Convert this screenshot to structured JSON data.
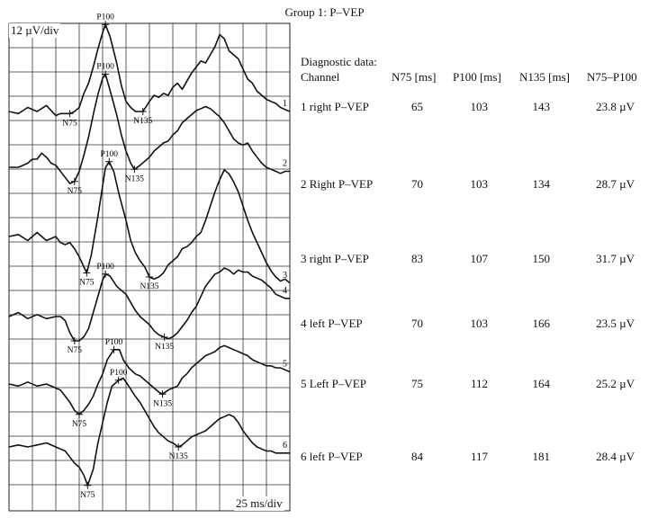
{
  "title": "Group 1: P–VEP",
  "y_scale": "12 µV/div",
  "x_scale": "25 ms/div",
  "table": {
    "heading": "Diagnostic data:",
    "columns": [
      "Channel",
      "N75 [ms]",
      "P100 [ms]",
      "N135 [ms]",
      "N75–P100"
    ],
    "rows": [
      {
        "channel": "1 right P–VEP",
        "n75": "65",
        "p100": "103",
        "n135": "143",
        "amp": "23.8 µV"
      },
      {
        "channel": "2 Right P–VEP",
        "n75": "70",
        "p100": "103",
        "n135": "134",
        "amp": "28.7 µV"
      },
      {
        "channel": "3 right P–VEP",
        "n75": "83",
        "p100": "107",
        "n135": "150",
        "amp": "31.7 µV"
      },
      {
        "channel": "4 left P–VEP",
        "n75": "70",
        "p100": "103",
        "n135": "166",
        "amp": "23.5 µV"
      },
      {
        "channel": "5 Left P–VEP",
        "n75": "75",
        "p100": "112",
        "n135": "164",
        "amp": "25.2 µV"
      },
      {
        "channel": "6 left P–VEP",
        "n75": "84",
        "p100": "117",
        "n135": "181",
        "amp": "28.4 µV"
      }
    ]
  },
  "chart_data": {
    "type": "line",
    "title": "Group 1: P–VEP",
    "x_unit": "ms",
    "y_unit": "µV",
    "x_per_div": 25,
    "y_per_div": 12,
    "xlim": [
      0,
      300
    ],
    "grid": true,
    "peak_labels": [
      "N75",
      "P100",
      "N135"
    ],
    "series": [
      {
        "name": "1",
        "x": [
          0,
          10,
          20,
          30,
          40,
          50,
          55,
          60,
          65,
          70,
          75,
          80,
          85,
          90,
          95,
          100,
          103,
          108,
          115,
          120,
          125,
          130,
          135,
          140,
          143,
          150,
          155,
          160,
          165,
          170,
          175,
          180,
          185,
          190,
          195,
          200,
          205,
          210,
          215,
          220,
          225,
          230,
          235,
          240,
          245,
          250,
          255,
          260,
          265,
          270,
          275,
          280,
          285,
          290,
          295,
          300
        ],
        "y": [
          0,
          -1,
          2,
          0,
          3,
          -2,
          -1,
          -1,
          -1,
          0,
          2,
          9,
          14,
          22,
          31,
          39,
          43,
          37,
          24,
          13,
          5,
          2,
          0,
          0,
          0,
          5,
          8,
          7,
          9,
          8,
          12,
          14,
          11,
          15,
          19,
          22,
          25,
          24,
          28,
          32,
          38,
          36,
          30,
          28,
          26,
          21,
          16,
          14,
          10,
          8,
          6,
          5,
          4,
          2,
          1,
          0
        ]
      },
      {
        "name": "2",
        "x": [
          0,
          10,
          20,
          25,
          30,
          35,
          40,
          45,
          50,
          55,
          60,
          65,
          70,
          75,
          80,
          85,
          90,
          95,
          100,
          103,
          108,
          115,
          120,
          125,
          130,
          134,
          140,
          145,
          150,
          155,
          160,
          165,
          170,
          175,
          180,
          185,
          190,
          195,
          200,
          205,
          210,
          215,
          220,
          225,
          230,
          235,
          240,
          245,
          250,
          255,
          260,
          265,
          270,
          275,
          280,
          285,
          290,
          295,
          300
        ],
        "y": [
          0,
          0,
          2,
          4,
          4,
          7,
          5,
          2,
          1,
          -2,
          -5,
          -8,
          -7,
          -2,
          6,
          15,
          26,
          36,
          44,
          46,
          38,
          26,
          16,
          8,
          2,
          -1,
          1,
          3,
          5,
          8,
          10,
          12,
          13,
          16,
          18,
          22,
          24,
          26,
          28,
          29,
          30,
          29,
          27,
          25,
          22,
          18,
          14,
          12,
          11,
          12,
          8,
          5,
          2,
          0,
          -1,
          -2,
          -3,
          -2,
          -2
        ]
      },
      {
        "name": "3",
        "x": [
          0,
          10,
          20,
          30,
          40,
          50,
          55,
          60,
          65,
          70,
          75,
          80,
          83,
          88,
          95,
          100,
          103,
          107,
          112,
          118,
          125,
          130,
          135,
          140,
          145,
          150,
          155,
          160,
          165,
          170,
          175,
          180,
          185,
          190,
          195,
          200,
          205,
          210,
          215,
          220,
          225,
          230,
          235,
          240,
          245,
          250,
          255,
          260,
          265,
          270,
          275,
          280,
          285,
          290,
          295,
          300
        ],
        "y": [
          0,
          1,
          -2,
          2,
          -2,
          0,
          -3,
          -4,
          -3,
          -6,
          -10,
          -15,
          -18,
          -9,
          10,
          25,
          34,
          37,
          32,
          20,
          8,
          -2,
          -8,
          -12,
          -15,
          -20,
          -21,
          -20,
          -18,
          -14,
          -12,
          -10,
          -6,
          -5,
          -3,
          0,
          2,
          8,
          15,
          22,
          28,
          33,
          31,
          27,
          22,
          15,
          8,
          2,
          -3,
          -8,
          -13,
          -17,
          -20,
          -22,
          -21,
          -23
        ]
      },
      {
        "name": "4",
        "x": [
          0,
          10,
          20,
          30,
          40,
          50,
          55,
          60,
          65,
          70,
          75,
          80,
          85,
          90,
          95,
          100,
          103,
          108,
          115,
          120,
          125,
          130,
          135,
          140,
          145,
          150,
          155,
          160,
          165,
          170,
          175,
          180,
          185,
          190,
          195,
          200,
          205,
          210,
          215,
          220,
          225,
          230,
          235,
          240,
          245,
          250,
          255,
          260,
          265,
          270,
          275,
          280,
          285,
          290,
          295,
          300
        ],
        "y": [
          0,
          2,
          -1,
          1,
          -1,
          0,
          0,
          -2,
          -8,
          -12,
          -12,
          -10,
          -6,
          2,
          10,
          18,
          21,
          20,
          15,
          13,
          11,
          7,
          3,
          0,
          -2,
          -4,
          -7,
          -9,
          -10,
          -11,
          -10,
          -8,
          -5,
          -2,
          2,
          5,
          10,
          15,
          18,
          21,
          22,
          24,
          23,
          21,
          23,
          22,
          22,
          20,
          19,
          18,
          16,
          14,
          11,
          10,
          9,
          9
        ]
      },
      {
        "name": "5",
        "x": [
          0,
          10,
          20,
          30,
          40,
          50,
          55,
          60,
          65,
          70,
          75,
          80,
          85,
          90,
          95,
          100,
          105,
          112,
          118,
          122,
          128,
          135,
          140,
          145,
          150,
          155,
          160,
          164,
          170,
          175,
          180,
          185,
          190,
          195,
          200,
          205,
          210,
          215,
          220,
          225,
          230,
          235,
          240,
          245,
          250,
          255,
          260,
          265,
          270,
          275,
          280,
          285,
          290,
          295,
          300
        ],
        "y": [
          0,
          -1,
          1,
          -1,
          0,
          -2,
          -3,
          -6,
          -9,
          -13,
          -15,
          -13,
          -10,
          -6,
          0,
          5,
          12,
          17,
          17,
          12,
          8,
          5,
          4,
          2,
          0,
          -2,
          -4,
          -5,
          -3,
          -2,
          -1,
          3,
          5,
          8,
          10,
          12,
          14,
          15,
          16,
          18,
          19,
          18,
          17,
          16,
          15,
          14,
          12,
          11,
          10,
          9,
          9,
          8,
          8,
          7,
          6
        ]
      },
      {
        "name": "6",
        "x": [
          0,
          10,
          20,
          30,
          40,
          50,
          55,
          60,
          65,
          70,
          75,
          80,
          84,
          90,
          95,
          100,
          105,
          110,
          117,
          122,
          128,
          135,
          140,
          145,
          150,
          155,
          160,
          165,
          170,
          175,
          181,
          185,
          190,
          195,
          200,
          205,
          210,
          215,
          220,
          225,
          230,
          235,
          240,
          245,
          250,
          255,
          260,
          265,
          270,
          275,
          280,
          285,
          290,
          295,
          300
        ],
        "y": [
          0,
          1,
          0,
          1,
          2,
          0,
          -1,
          -2,
          -5,
          -8,
          -10,
          -14,
          -19,
          -11,
          2,
          12,
          22,
          30,
          33,
          34,
          30,
          25,
          22,
          18,
          14,
          10,
          7,
          5,
          3,
          2,
          0,
          1,
          3,
          5,
          6,
          7,
          8,
          10,
          12,
          14,
          15,
          16,
          15,
          12,
          8,
          5,
          2,
          0,
          -1,
          -2,
          -2,
          -3,
          -3,
          -3,
          -3
        ]
      }
    ],
    "peaks": [
      {
        "series": "1",
        "N75": 65,
        "P100": 103,
        "N135": 143
      },
      {
        "series": "2",
        "N75": 70,
        "P100": 103,
        "N135": 134
      },
      {
        "series": "3",
        "N75": 83,
        "P100": 107,
        "N135": 150
      },
      {
        "series": "4",
        "N75": 70,
        "P100": 103,
        "N135": 166
      },
      {
        "series": "5",
        "N75": 75,
        "P100": 112,
        "N135": 164
      },
      {
        "series": "6",
        "N75": 84,
        "P100": 117,
        "N135": 181
      }
    ]
  }
}
